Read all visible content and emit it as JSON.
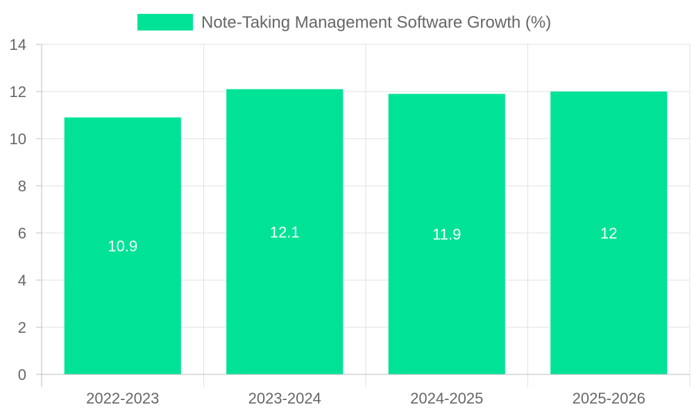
{
  "chart_data": {
    "type": "bar",
    "title": "",
    "xlabel": "",
    "ylabel": "",
    "categories": [
      "2022-2023",
      "2023-2024",
      "2024-2025",
      "2025-2026"
    ],
    "series": [
      {
        "name": "Note-Taking Management Software Growth (%)",
        "values": [
          10.9,
          12.1,
          11.9,
          12
        ],
        "color": "#00e396"
      }
    ],
    "ylim": [
      0,
      14
    ],
    "yticks": [
      0,
      2,
      4,
      6,
      8,
      10,
      12,
      14
    ],
    "legend_position": "top-center",
    "grid": true,
    "data_labels": [
      "10.9",
      "12.1",
      "11.9",
      "12"
    ]
  }
}
